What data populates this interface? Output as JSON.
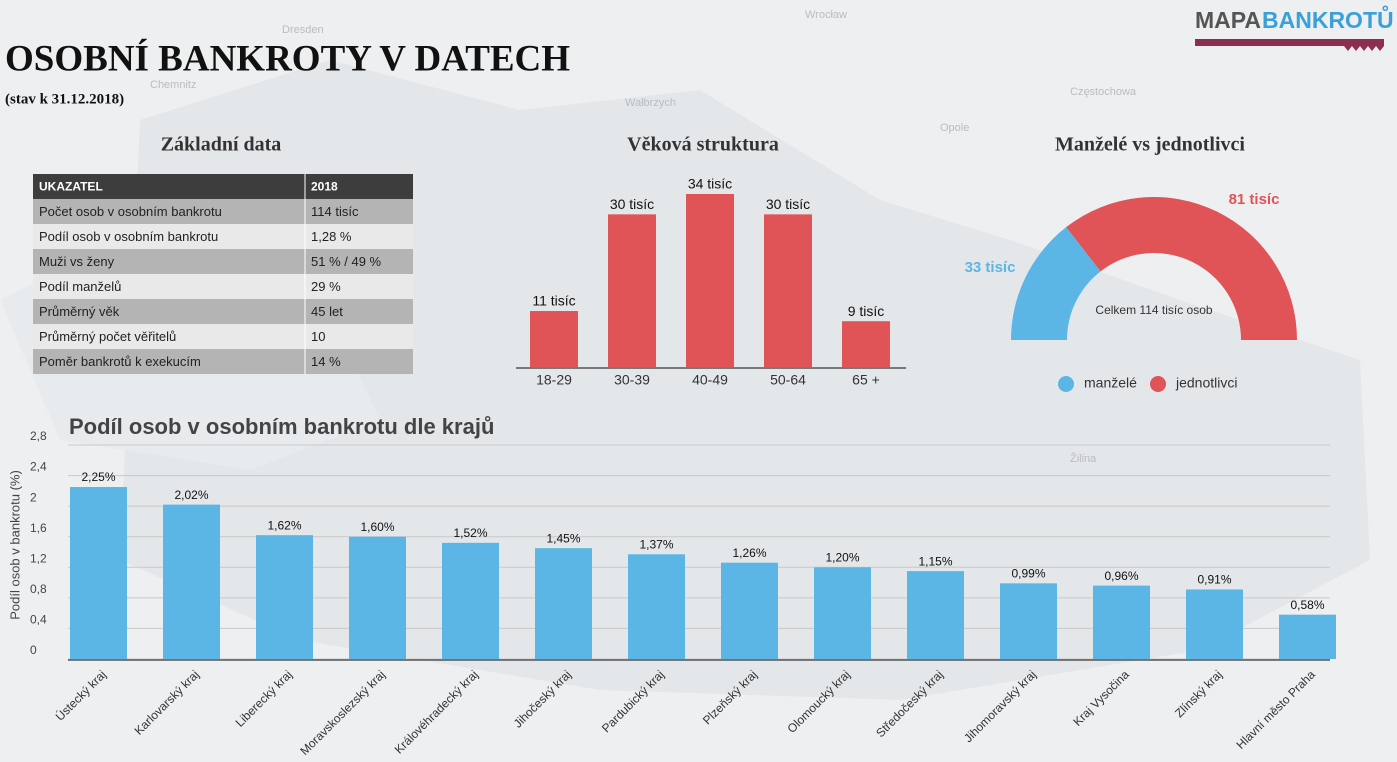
{
  "header": {
    "title": "OSOBNÍ BANKROTY V DATECH",
    "subtitle": "(stav k 31.12.2018)",
    "logo_left": "MAPA",
    "logo_right": "BANKROTŮ"
  },
  "map_labels": [
    "Dresden",
    "Wrocław",
    "Chemnitz",
    "Wałbrzych",
    "Częstochowa",
    "Opole",
    "Žilina"
  ],
  "table": {
    "title": "Základní data",
    "columns": [
      "UKAZATEL",
      "2018"
    ],
    "rows": [
      [
        "Počet osob v osobním bankrotu",
        "114 tisíc"
      ],
      [
        "Podíl osob v osobním bankrotu",
        "1,28 %"
      ],
      [
        "Muži vs ženy",
        "51 % / 49 %"
      ],
      [
        "Podíl manželů",
        "29 %"
      ],
      [
        "Průměrný věk",
        "45 let"
      ],
      [
        "Průměrný počet věřitelů",
        "10"
      ],
      [
        "Poměr bankrotů k exekucím",
        "14 %"
      ]
    ]
  },
  "chart_data": [
    {
      "type": "bar",
      "title": "Věková struktura",
      "categories": [
        "18-29",
        "30-39",
        "40-49",
        "50-64",
        "65 +"
      ],
      "values": [
        11,
        30,
        34,
        30,
        9
      ],
      "value_labels": [
        "11 tisíc",
        "30 tisíc",
        "34 tisíc",
        "30 tisíc",
        "9 tisíc"
      ],
      "color": "#e05356"
    },
    {
      "type": "pie",
      "title": "Manželé vs jednotlivci",
      "categories": [
        "manželé",
        "jednotlivci"
      ],
      "values": [
        33,
        81
      ],
      "value_labels": [
        "33 tisíc",
        "81 tisíc"
      ],
      "colors": [
        "#5bb5e5",
        "#e05356"
      ],
      "center_label": "Celkem 114 tisíc osob"
    },
    {
      "type": "bar",
      "title": "Podíl osob v osobním bankrotu dle krajů",
      "y_label": "Podíl osob v bankrotu (%)",
      "categories": [
        "Ústecký kraj",
        "Karlovarský kraj",
        "Liberecký kraj",
        "Moravskoslezský kraj",
        "Královéhradecký kraj",
        "Jihočeský kraj",
        "Pardubický kraj",
        "Plzeňský kraj",
        "Olomoucký kraj",
        "Středočeský kraj",
        "Jihomoravský kraj",
        "Kraj Vysočina",
        "Zlínský kraj",
        "Hlavní město Praha"
      ],
      "values": [
        2.25,
        2.02,
        1.62,
        1.6,
        1.52,
        1.45,
        1.37,
        1.26,
        1.2,
        1.15,
        0.99,
        0.96,
        0.91,
        0.58
      ],
      "value_labels": [
        "2,25%",
        "2,02%",
        "1,62%",
        "1,60%",
        "1,52%",
        "1,45%",
        "1,37%",
        "1,26%",
        "1,20%",
        "1,15%",
        "0,99%",
        "0,96%",
        "0,91%",
        "0,58%"
      ],
      "color": "#5bb5e5",
      "ylim": [
        0,
        2.8
      ],
      "yticks": [
        0,
        {
          "value": 0.4,
          "label": "0,4"
        },
        {
          "value": 0.8,
          "label": "0,8"
        },
        {
          "value": 1.2,
          "label": "1,2"
        },
        {
          "value": 1.6,
          "label": "1,6"
        },
        2,
        {
          "value": 2.4,
          "label": "2,4"
        },
        {
          "value": 2.8,
          "label": "2,8"
        }
      ],
      "grid": true
    }
  ]
}
